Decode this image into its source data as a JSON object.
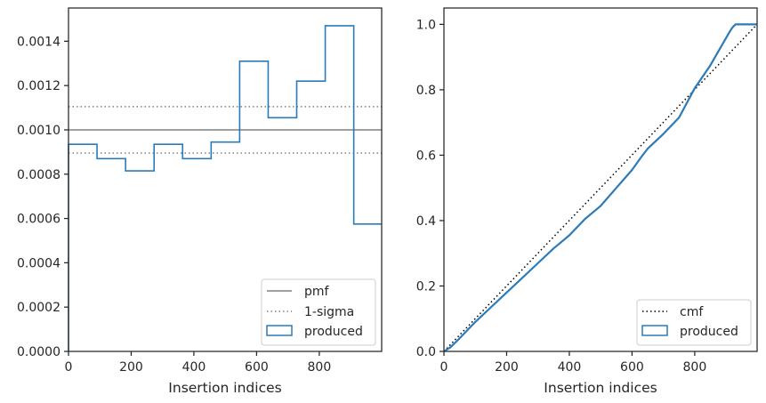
{
  "colors": {
    "produced": "#2b7bb9",
    "pmf": "#808080",
    "sigma": "#808080",
    "cmf": "#000000",
    "axis": "#262626"
  },
  "chart_data": [
    {
      "type": "histogram",
      "xlabel": "Insertion indices",
      "ylabel": "",
      "xlim": [
        0,
        999
      ],
      "ylim": [
        0,
        0.00155
      ],
      "xticks": [
        0,
        200,
        400,
        600,
        800
      ],
      "yticks": [
        0,
        0.0002,
        0.0004,
        0.0006,
        0.0008,
        0.001,
        0.0012,
        0.0014
      ],
      "ytick_labels": [
        "0.0000",
        "0.0002",
        "0.0004",
        "0.0006",
        "0.0008",
        "0.0010",
        "0.0012",
        "0.0014"
      ],
      "legend_position": "lower right",
      "legend": [
        "pmf",
        "1-sigma",
        "produced"
      ],
      "pmf": 0.001,
      "sigma_band": [
        0.000895,
        0.001105
      ],
      "series": [
        {
          "name": "produced",
          "bin_edges": [
            0,
            91,
            182,
            273,
            364,
            455,
            546,
            637,
            728,
            819,
            910,
            999
          ],
          "values": [
            0.000935,
            0.00087,
            0.000815,
            0.000935,
            0.00087,
            0.000945,
            0.00131,
            0.001055,
            0.00122,
            0.00147,
            0.000575
          ]
        }
      ]
    },
    {
      "type": "line",
      "xlabel": "Insertion indices",
      "ylabel": "",
      "xlim": [
        0,
        999
      ],
      "ylim": [
        0,
        1.05
      ],
      "xticks": [
        0,
        200,
        400,
        600,
        800
      ],
      "yticks": [
        0,
        0.2,
        0.4,
        0.6,
        0.8,
        1.0
      ],
      "ytick_labels": [
        "0.0",
        "0.2",
        "0.4",
        "0.6",
        "0.8",
        "1.0"
      ],
      "legend_position": "lower right",
      "legend": [
        "cmf",
        "produced"
      ],
      "series": [
        {
          "name": "cmf",
          "x": [
            0,
            999
          ],
          "y": [
            0,
            1.0
          ]
        },
        {
          "name": "produced",
          "x": [
            0,
            20,
            50,
            100,
            150,
            200,
            250,
            300,
            350,
            400,
            450,
            500,
            550,
            600,
            630,
            650,
            700,
            750,
            800,
            850,
            880,
            910,
            920,
            930,
            960,
            999
          ],
          "y": [
            0,
            0.012,
            0.04,
            0.09,
            0.135,
            0.18,
            0.225,
            0.27,
            0.315,
            0.355,
            0.405,
            0.445,
            0.5,
            0.555,
            0.595,
            0.62,
            0.665,
            0.715,
            0.805,
            0.875,
            0.925,
            0.975,
            0.99,
            1.0,
            1.0,
            1.0
          ]
        }
      ]
    }
  ]
}
